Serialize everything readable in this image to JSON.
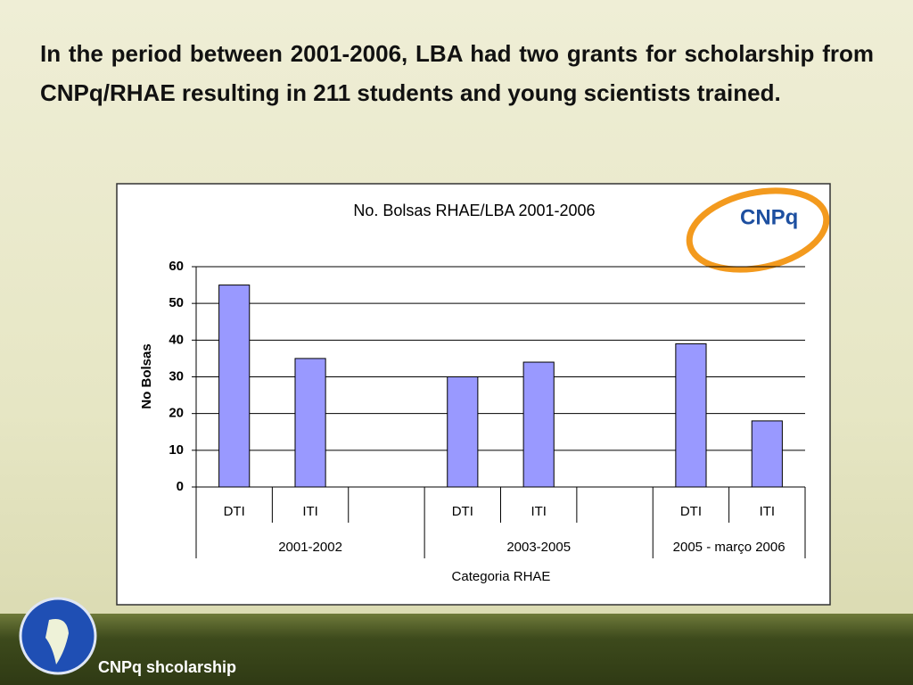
{
  "heading": "In the period between 2001-2006, LBA had two grants for scholarship from CNPq/RHAE resulting in 211 students and young scientists trained.",
  "logo": "CNPq",
  "footer": "CNPq shcolarship",
  "chart_data": {
    "type": "bar",
    "title": "No. Bolsas RHAE/LBA  2001-2006",
    "y_label": "No Bolsas",
    "x_label": "Categoria RHAE",
    "categories": [
      "DTI",
      "ITI",
      null,
      "DTI",
      "ITI",
      null,
      "DTI",
      "ITI"
    ],
    "groups": [
      "2001-2002",
      "2003-2005",
      "2005 - março 2006"
    ],
    "values": [
      55,
      35,
      null,
      30,
      34,
      null,
      39,
      18
    ],
    "color": "#9999ff",
    "ylim": [
      0,
      60
    ],
    "yticks": [
      0,
      10,
      20,
      30,
      40,
      50,
      60
    ],
    "grid": true
  }
}
